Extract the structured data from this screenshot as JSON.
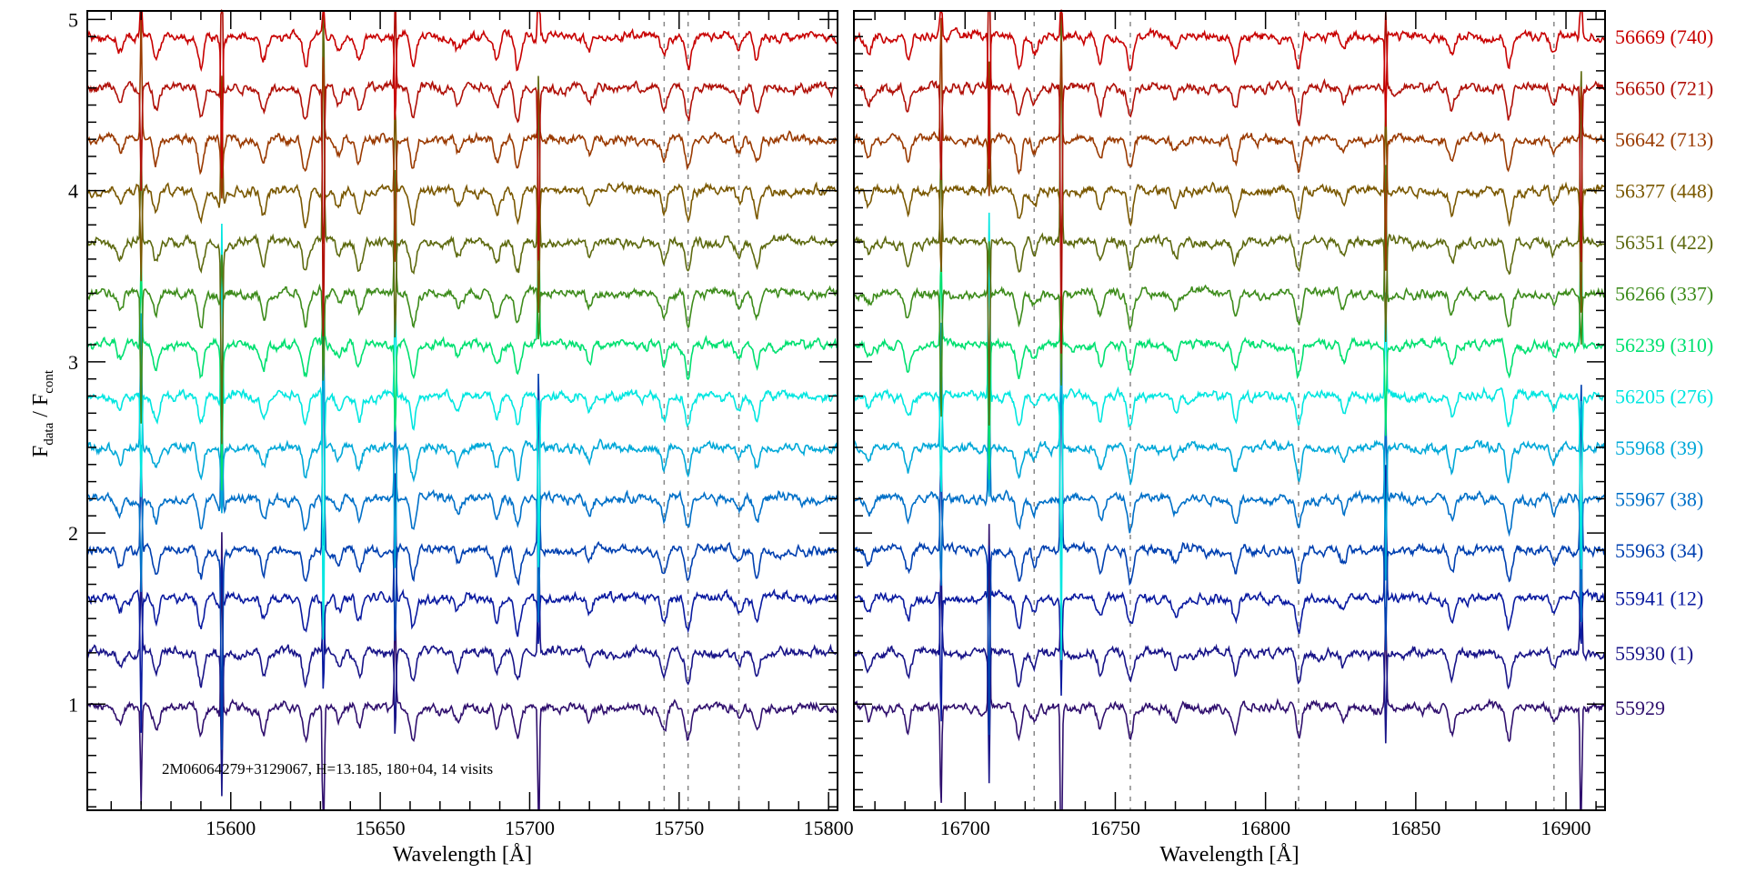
{
  "chart_data": {
    "type": "line",
    "title": "",
    "annotation": "2M06064279+3129067,    H=13.185,    180+04,    14 visits",
    "ylabel_main": "F",
    "ylabel_sub1": "data",
    "ylabel_mid": " / F",
    "ylabel_sub2": "cont",
    "ylim": [
      0.38,
      5.05
    ],
    "yticks": [
      "1",
      "2",
      "3",
      "4",
      "5"
    ],
    "panels": [
      {
        "xlabel": "Wavelength [Å]",
        "xlim": [
          15552,
          15803
        ],
        "xticks": [
          "15600",
          "15650",
          "15700",
          "15750",
          "15800"
        ],
        "dashed_lines": [
          15745,
          15753,
          15770
        ],
        "absorption_lines": [
          15563,
          15575,
          15590,
          15597,
          15611,
          15625,
          15636,
          15643,
          15661,
          15676,
          15689,
          15696,
          15720,
          15745,
          15753,
          15770,
          15776
        ],
        "sky_lines": [
          15570,
          15597,
          15631,
          15655,
          15703
        ]
      },
      {
        "xlabel": "Wavelength [Å]",
        "xlim": [
          16663,
          16913
        ],
        "xticks": [
          "16700",
          "16750",
          "16800",
          "16850",
          "16900"
        ],
        "dashed_lines": [
          16723,
          16755,
          16811,
          16896
        ],
        "absorption_lines": [
          16668,
          16681,
          16718,
          16723,
          16745,
          16755,
          16770,
          16790,
          16811,
          16826,
          16862,
          16881,
          16896
        ],
        "sky_lines": [
          16692,
          16708,
          16732,
          16840,
          16905
        ]
      }
    ],
    "series": [
      {
        "name": "56669 (740)",
        "offset": 4.9,
        "color": "#c80000"
      },
      {
        "name": "56650 (721)",
        "offset": 4.6,
        "color": "#b01008"
      },
      {
        "name": "56642 (713)",
        "offset": 4.3,
        "color": "#9a3a00"
      },
      {
        "name": "56377 (448)",
        "offset": 4.0,
        "color": "#7a5800"
      },
      {
        "name": "56351 (422)",
        "offset": 3.7,
        "color": "#5e6a10"
      },
      {
        "name": "56266 (337)",
        "offset": 3.4,
        "color": "#3e8c1c"
      },
      {
        "name": "56239 (310)",
        "offset": 3.1,
        "color": "#00e070"
      },
      {
        "name": "56205 (276)",
        "offset": 2.8,
        "color": "#00e6e0"
      },
      {
        "name": "55968 (39)",
        "offset": 2.5,
        "color": "#00a8d8"
      },
      {
        "name": "55967 (38)",
        "offset": 2.2,
        "color": "#0070c8"
      },
      {
        "name": "55963 (34)",
        "offset": 1.9,
        "color": "#0040b0"
      },
      {
        "name": "55941 (12)",
        "offset": 1.62,
        "color": "#0a1aa0"
      },
      {
        "name": "55930 (1)",
        "offset": 1.3,
        "color": "#181488"
      },
      {
        "name": "55929",
        "offset": 0.98,
        "color": "#30106e"
      }
    ]
  }
}
